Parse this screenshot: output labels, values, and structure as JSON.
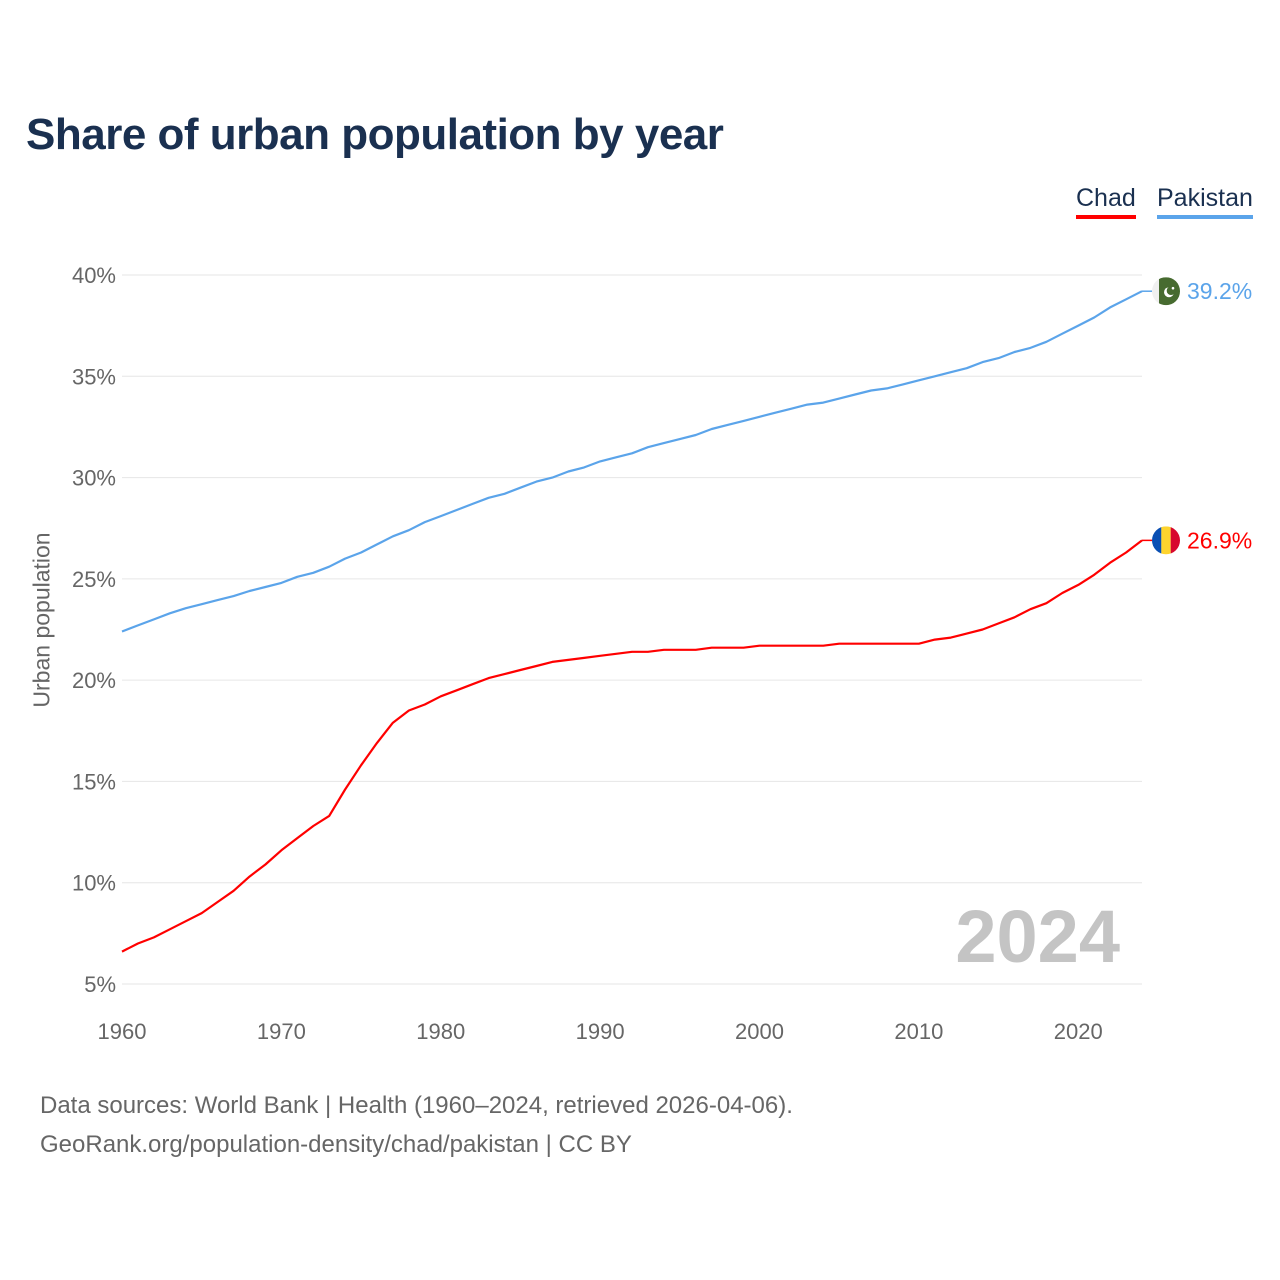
{
  "chart_data": {
    "type": "line",
    "title": "Share of urban population by year",
    "xlabel": "",
    "ylabel": "Urban population",
    "xlim": [
      1960,
      2024
    ],
    "ylim": [
      5,
      40
    ],
    "grid": true,
    "legend_placement": "top-right",
    "x_ticks": [
      "1960",
      "1970",
      "1980",
      "1990",
      "2000",
      "2010",
      "2020"
    ],
    "y_ticks": [
      "5%",
      "10%",
      "15%",
      "20%",
      "25%",
      "30%",
      "35%",
      "40%"
    ],
    "watermark_year": "2024",
    "x": [
      1960,
      1961,
      1962,
      1963,
      1964,
      1965,
      1966,
      1967,
      1968,
      1969,
      1970,
      1971,
      1972,
      1973,
      1974,
      1975,
      1976,
      1977,
      1978,
      1979,
      1980,
      1981,
      1982,
      1983,
      1984,
      1985,
      1986,
      1987,
      1988,
      1989,
      1990,
      1991,
      1992,
      1993,
      1994,
      1995,
      1996,
      1997,
      1998,
      1999,
      2000,
      2001,
      2002,
      2003,
      2004,
      2005,
      2006,
      2007,
      2008,
      2009,
      2010,
      2011,
      2012,
      2013,
      2014,
      2015,
      2016,
      2017,
      2018,
      2019,
      2020,
      2021,
      2022,
      2023,
      2024
    ],
    "series": [
      {
        "name": "Chad",
        "color": "#ff0000",
        "end_label": "26.9%",
        "values": [
          6.6,
          7.0,
          7.3,
          7.7,
          8.1,
          8.5,
          9.05,
          9.6,
          10.3,
          10.9,
          11.6,
          12.2,
          12.8,
          13.3,
          14.6,
          15.8,
          16.9,
          17.9,
          18.5,
          18.8,
          19.2,
          19.5,
          19.8,
          20.1,
          20.3,
          20.5,
          20.7,
          20.9,
          21.0,
          21.1,
          21.2,
          21.3,
          21.4,
          21.4,
          21.5,
          21.5,
          21.5,
          21.6,
          21.6,
          21.6,
          21.7,
          21.7,
          21.7,
          21.7,
          21.7,
          21.8,
          21.8,
          21.8,
          21.8,
          21.8,
          21.8,
          22.0,
          22.1,
          22.3,
          22.5,
          22.8,
          23.1,
          23.5,
          23.8,
          24.3,
          24.7,
          25.2,
          25.8,
          26.3,
          26.9
        ]
      },
      {
        "name": "Pakistan",
        "color": "#5ba4ea",
        "end_label": "39.2%",
        "values": [
          22.4,
          22.7,
          23.0,
          23.3,
          23.55,
          23.75,
          23.95,
          24.15,
          24.4,
          24.6,
          24.8,
          25.1,
          25.3,
          25.6,
          26.0,
          26.3,
          26.7,
          27.1,
          27.4,
          27.8,
          28.1,
          28.4,
          28.7,
          29.0,
          29.2,
          29.5,
          29.8,
          30.0,
          30.3,
          30.5,
          30.8,
          31.0,
          31.2,
          31.5,
          31.7,
          31.9,
          32.1,
          32.4,
          32.6,
          32.8,
          33.0,
          33.2,
          33.4,
          33.6,
          33.7,
          33.9,
          34.1,
          34.3,
          34.4,
          34.6,
          34.8,
          35.0,
          35.2,
          35.4,
          35.7,
          35.9,
          36.2,
          36.4,
          36.7,
          37.1,
          37.5,
          37.9,
          38.4,
          38.8,
          39.2
        ]
      }
    ]
  },
  "footer": {
    "line1": "Data sources: World Bank | Health (1960–2024, retrieved 2026-04-06).",
    "line2": "GeoRank.org/population-density/chad/pakistan | CC BY"
  }
}
